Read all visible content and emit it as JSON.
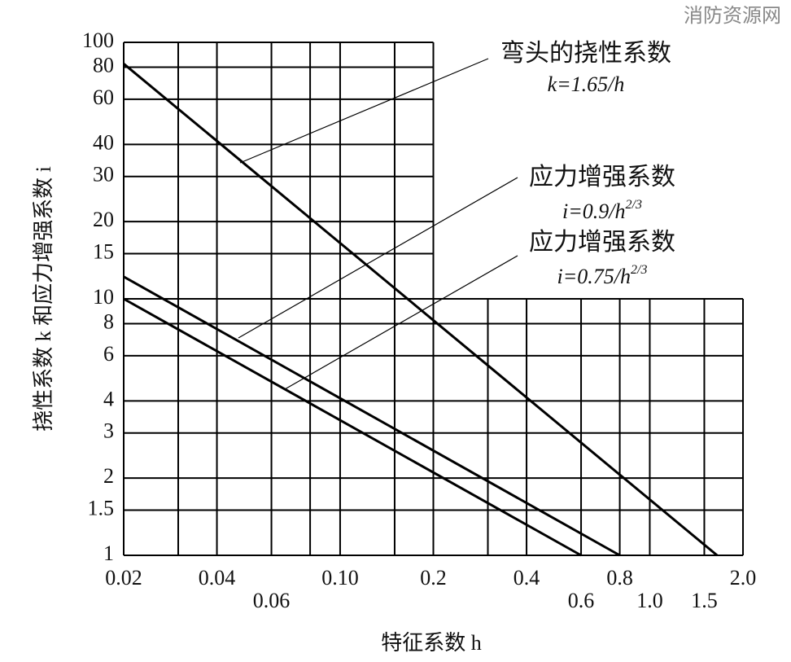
{
  "chart_data": {
    "type": "line",
    "watermark": "消防资源网",
    "xlabel": "特征系数 h",
    "ylabel": "挠性系数 k 和应力增强系数 i",
    "xscale": "log",
    "yscale": "log",
    "xlim": [
      0.02,
      2.0
    ],
    "ylim": [
      1,
      100
    ],
    "xticks": [
      0.02,
      0.04,
      {
        "value": 0.1,
        "label": "0.10"
      },
      0.2,
      0.4,
      0.8,
      {
        "value": 2,
        "label": "2.0"
      }
    ],
    "xticks_row2": [
      0.06,
      0.6,
      {
        "value": 1,
        "label": "1.0"
      },
      1.5
    ],
    "xgrid": [
      0.02,
      0.03,
      0.04,
      0.06,
      0.08,
      0.1,
      0.15,
      0.2,
      0.3,
      0.4,
      0.6,
      0.8,
      1,
      1.5,
      2
    ],
    "yticks": [
      1,
      1.5,
      2,
      3,
      4,
      6,
      8,
      10,
      15,
      20,
      30,
      40,
      60,
      80,
      100
    ],
    "upper_grid_xmax": 0.2,
    "right_grid_ymax": 10,
    "series": [
      {
        "name": "弯头的挠性系数",
        "formula": "k=1.65/h",
        "color": "#000",
        "x": [
          0.02,
          1.65
        ],
        "values": [
          82.5,
          1
        ]
      },
      {
        "name": "应力增强系数",
        "formula": "i=0.9/h",
        "exponent": "2/3",
        "color": "#000",
        "x": [
          0.02,
          0.8
        ],
        "values": [
          12.2,
          1
        ]
      },
      {
        "name": "应力增强系数",
        "formula": "i=0.75/h",
        "exponent": "2/3",
        "color": "#000",
        "x": [
          0.02,
          0.6
        ],
        "values": [
          10,
          1
        ]
      }
    ]
  }
}
